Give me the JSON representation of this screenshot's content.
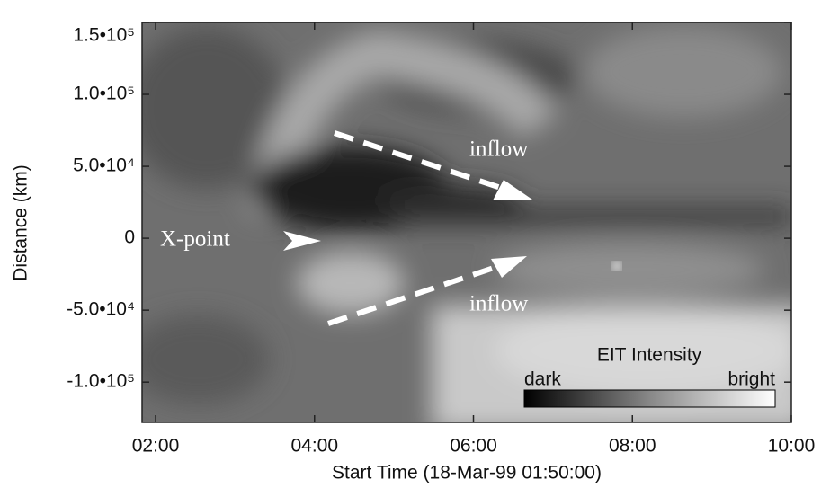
{
  "chart_data": {
    "type": "heatmap",
    "x_label": "Start Time (18-Mar-99 01:50:00)",
    "y_label": "Distance (km)",
    "xlim": [
      1.83,
      10
    ],
    "xticks": [
      {
        "value": 2,
        "label": "02:00"
      },
      {
        "value": 4,
        "label": "04:00"
      },
      {
        "value": 6,
        "label": "06:00"
      },
      {
        "value": 8,
        "label": "08:00"
      },
      {
        "value": 10,
        "label": "10:00"
      }
    ],
    "ylim": [
      -128000,
      150000
    ],
    "yticks": [
      {
        "value": 150000,
        "label": "1.5•10⁵"
      },
      {
        "value": 100000,
        "label": "1.0•10⁵"
      },
      {
        "value": 50000,
        "label": "5.0•10⁴"
      },
      0,
      {
        "value": -50000,
        "label": "-5.0•10⁴"
      },
      {
        "value": -100000,
        "label": "-1.0•10⁵"
      }
    ],
    "annotations": [
      "X-point",
      "inflow",
      "inflow"
    ],
    "colorbar": {
      "title": "EIT Intensity",
      "low_label": "dark",
      "high_label": "bright"
    }
  }
}
